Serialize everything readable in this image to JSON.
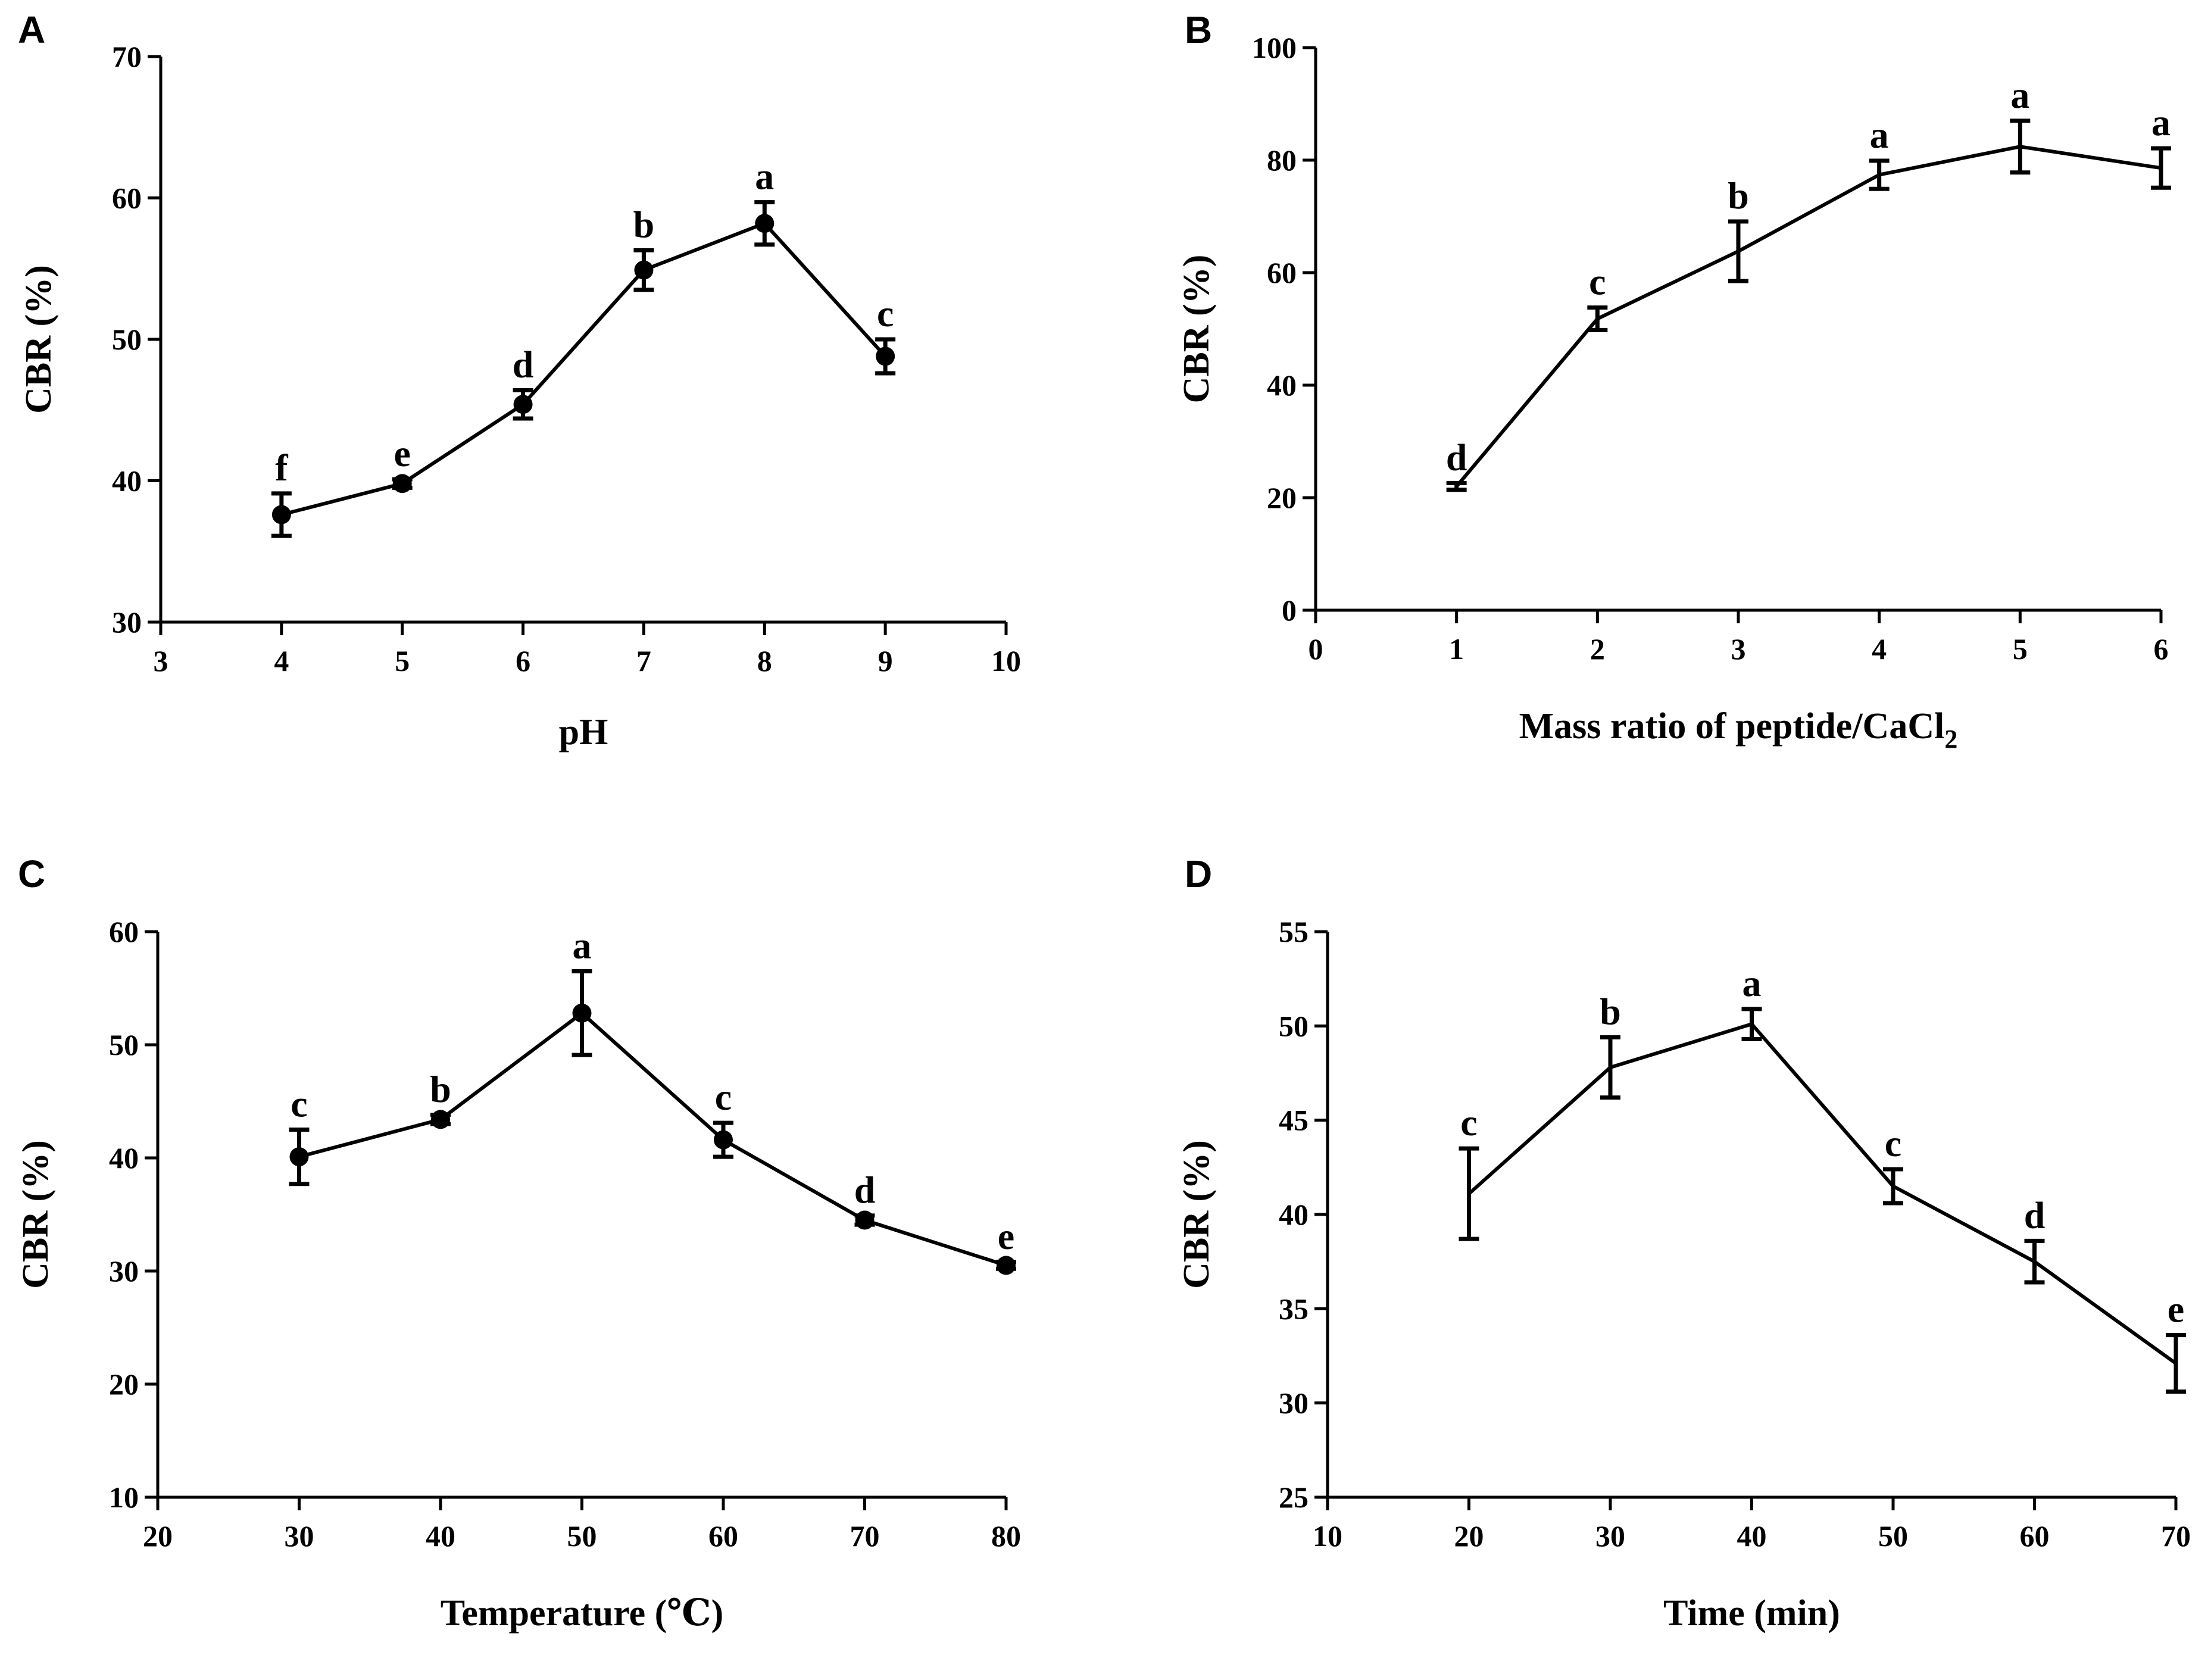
{
  "chart_data": [
    {
      "panel": "A",
      "type": "line",
      "xlabel": "pH",
      "ylabel": "CBR (%)",
      "xlim": [
        3,
        10
      ],
      "ylim": [
        30,
        70
      ],
      "xticks": [
        "3",
        "4",
        "5",
        "6",
        "7",
        "8",
        "9",
        "10"
      ],
      "yticks": [
        "30",
        "40",
        "50",
        "60",
        "70"
      ],
      "markers": true,
      "series": [
        {
          "name": "CBR",
          "x": [
            4,
            5,
            6,
            7,
            8,
            9
          ],
          "values": [
            37.6,
            39.8,
            45.4,
            54.9,
            58.2,
            48.8
          ],
          "errors": [
            1.5,
            0.3,
            1.0,
            1.4,
            1.5,
            1.2
          ],
          "labels": [
            "f",
            "e",
            "d",
            "b",
            "a",
            "c"
          ]
        }
      ]
    },
    {
      "panel": "B",
      "type": "line",
      "xlabel": "Mass ratio of peptide/CaCl",
      "xlabel_sub": "2",
      "ylabel": "CBR (%)",
      "xlim": [
        0,
        6
      ],
      "ylim": [
        0,
        100
      ],
      "xticks": [
        "0",
        "1",
        "2",
        "3",
        "4",
        "5",
        "6"
      ],
      "yticks": [
        "0",
        "20",
        "40",
        "60",
        "80",
        "100"
      ],
      "markers": false,
      "series": [
        {
          "name": "CBR",
          "x": [
            1,
            2,
            3,
            4,
            5,
            6
          ],
          "values": [
            22,
            51.8,
            63.8,
            77.4,
            82.4,
            78.6
          ],
          "errors": [
            0.6,
            2.0,
            5.3,
            2.5,
            4.6,
            3.5
          ],
          "labels": [
            "d",
            "c",
            "b",
            "a",
            "a",
            "a"
          ]
        }
      ]
    },
    {
      "panel": "C",
      "type": "line",
      "xlabel": "Temperature (℃)",
      "ylabel": "CBR (%)",
      "xlim": [
        20,
        80
      ],
      "ylim": [
        10,
        60
      ],
      "xticks": [
        "20",
        "30",
        "40",
        "50",
        "60",
        "70",
        "80"
      ],
      "yticks": [
        "10",
        "20",
        "30",
        "40",
        "50",
        "60"
      ],
      "markers": true,
      "series": [
        {
          "name": "CBR",
          "x": [
            30,
            40,
            50,
            60,
            70,
            80
          ],
          "values": [
            40.1,
            43.4,
            52.8,
            41.6,
            34.5,
            30.5
          ],
          "errors": [
            2.4,
            0.4,
            3.7,
            1.5,
            0.4,
            0.3
          ],
          "labels": [
            "c",
            "b",
            "a",
            "c",
            "d",
            "e"
          ]
        }
      ]
    },
    {
      "panel": "D",
      "type": "line",
      "xlabel": "Time (min)",
      "ylabel": "CBR (%)",
      "xlim": [
        10,
        70
      ],
      "ylim": [
        25,
        55
      ],
      "xticks": [
        "10",
        "20",
        "30",
        "40",
        "50",
        "60",
        "70"
      ],
      "yticks": [
        "25",
        "30",
        "35",
        "40",
        "45",
        "50",
        "55"
      ],
      "markers": false,
      "series": [
        {
          "name": "CBR",
          "x": [
            20,
            30,
            40,
            50,
            60,
            70
          ],
          "values": [
            41.1,
            47.8,
            50.1,
            41.5,
            37.5,
            32.1
          ],
          "errors": [
            2.4,
            1.6,
            0.8,
            0.9,
            1.1,
            1.5
          ],
          "labels": [
            "c",
            "b",
            "a",
            "c",
            "d",
            "e"
          ]
        }
      ]
    }
  ]
}
